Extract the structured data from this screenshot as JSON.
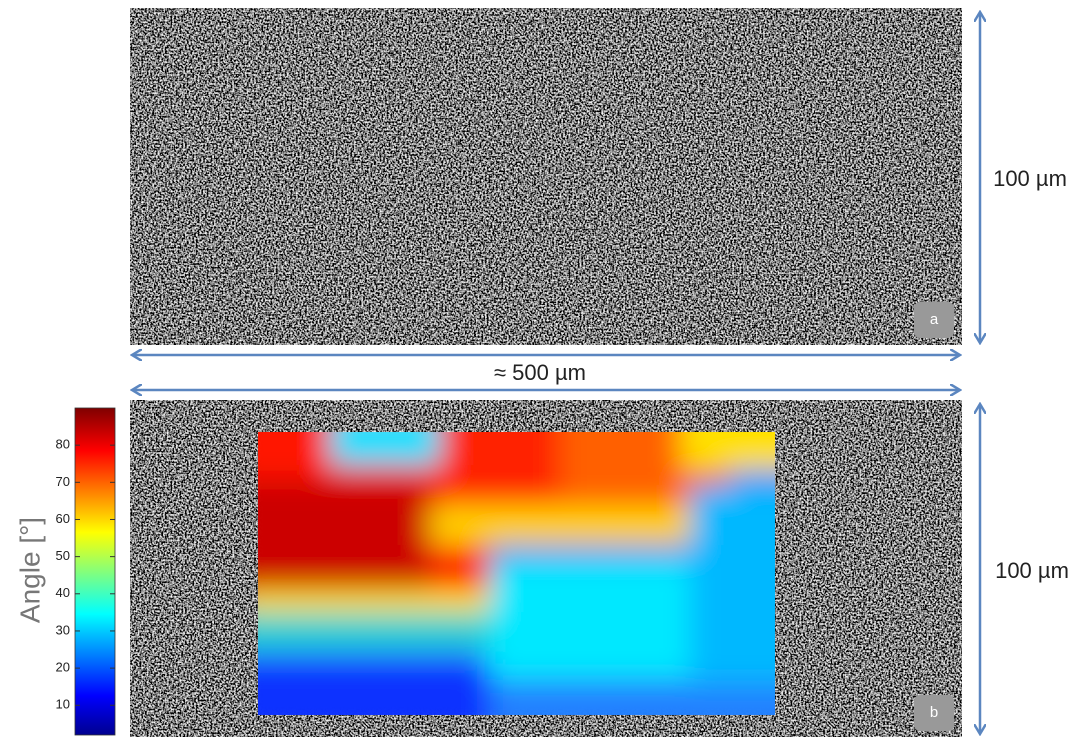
{
  "panel_a": {
    "label": "a",
    "height_label": "100 µm"
  },
  "width_label": "≈ 500 µm",
  "panel_b": {
    "label": "b",
    "height_label": "100 µm"
  },
  "colorbar": {
    "title": "Angle [°]",
    "lim": [
      2,
      90
    ],
    "ticks": [
      10,
      20,
      30,
      40,
      50,
      60,
      70,
      80
    ]
  }
}
